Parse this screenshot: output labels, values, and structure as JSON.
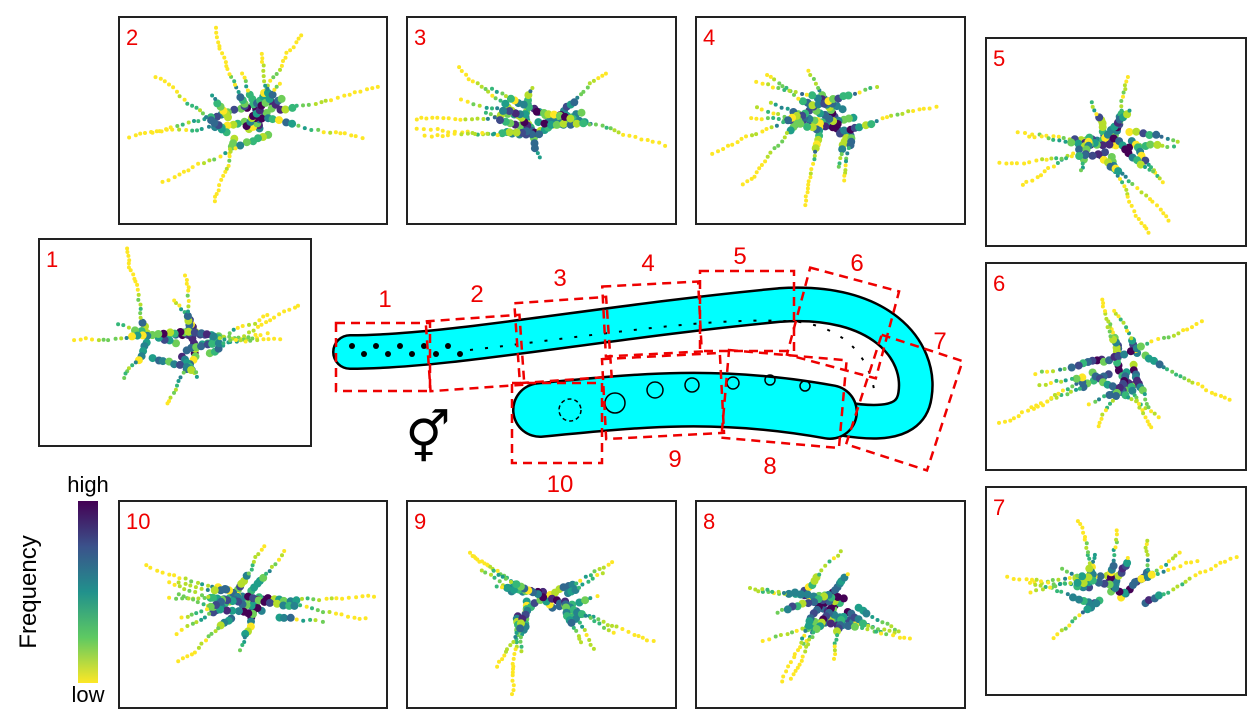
{
  "panels": [
    {
      "label": "1"
    },
    {
      "label": "2"
    },
    {
      "label": "3"
    },
    {
      "label": "4"
    },
    {
      "label": "5"
    },
    {
      "label": "6"
    },
    {
      "label": "7"
    },
    {
      "label": "8"
    },
    {
      "label": "9"
    },
    {
      "label": "10"
    }
  ],
  "gonad_regions": [
    "1",
    "2",
    "3",
    "4",
    "5",
    "6",
    "7",
    "8",
    "9",
    "10"
  ],
  "colorbar": {
    "title": "Frequency",
    "high": "high",
    "low": "low"
  },
  "sex_symbol": "⚥"
}
